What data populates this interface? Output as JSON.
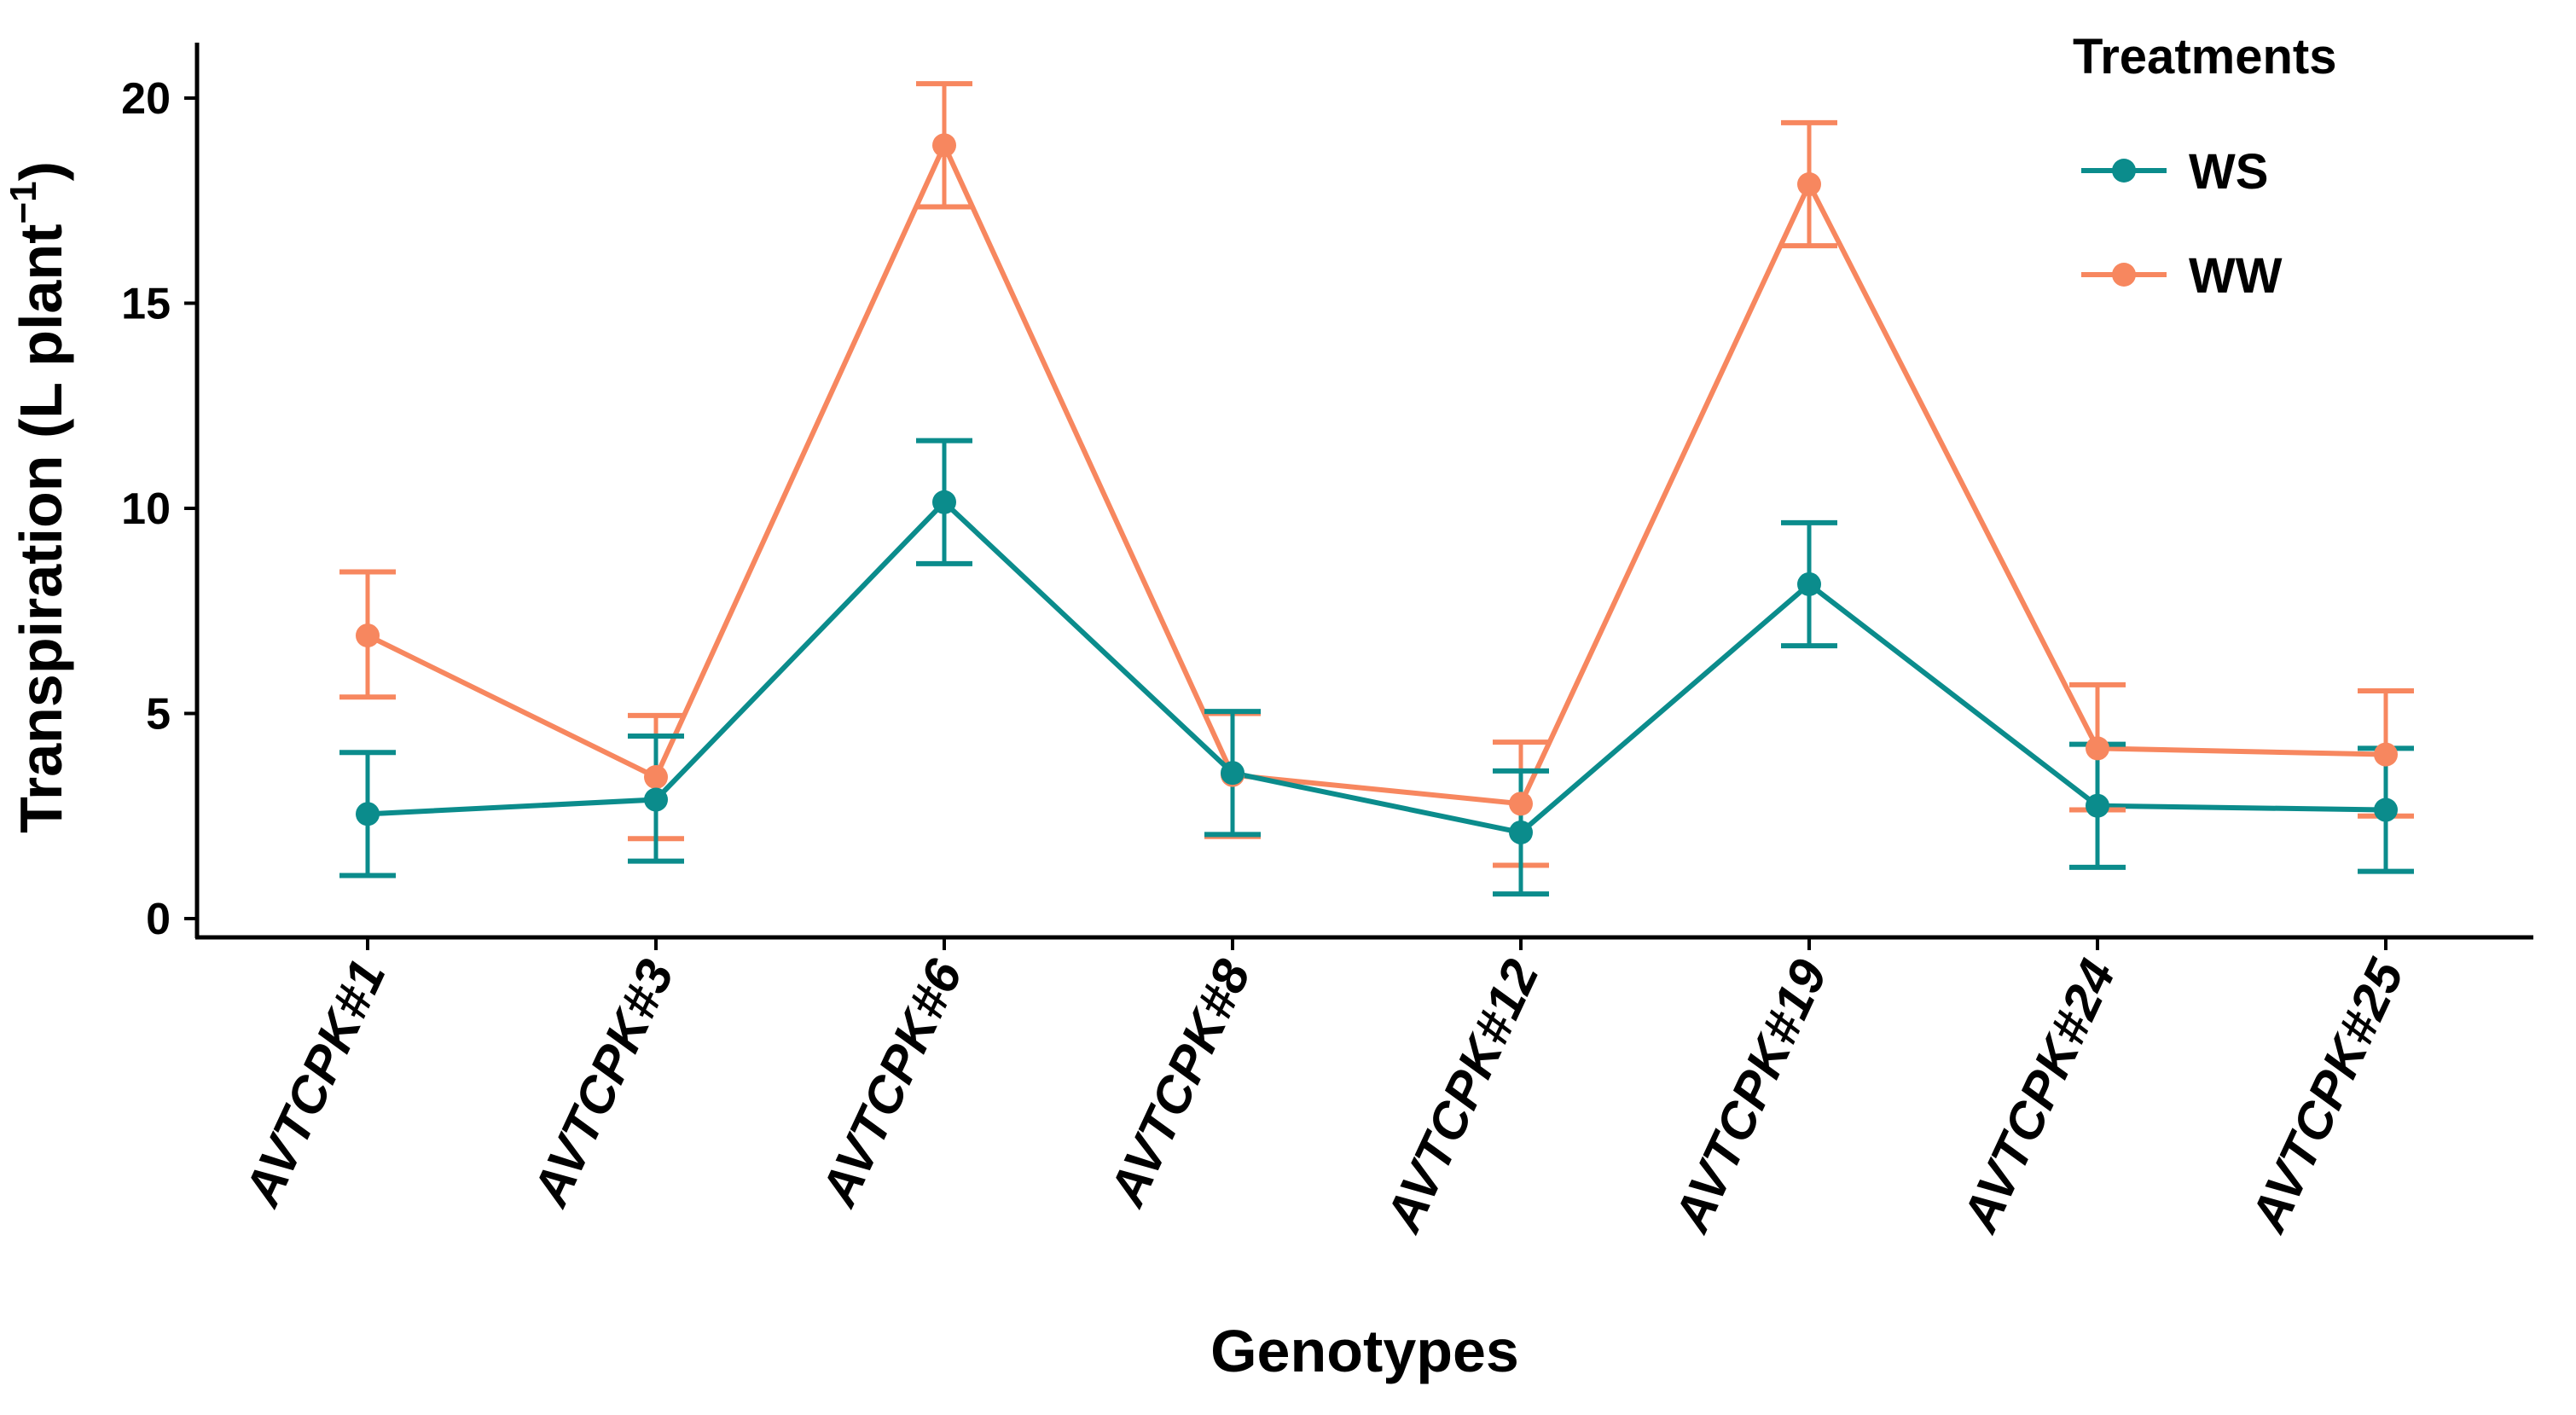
{
  "chart_data": {
    "type": "line",
    "xlabel": "Genotypes",
    "ylabel": "Transpiration (L plant",
    "ylabel_sup": "−1",
    "ylabel_close": ")",
    "ylim": [
      0,
      20
    ],
    "yticks": [
      0,
      5,
      10,
      15,
      20
    ],
    "grid": false,
    "legend": {
      "title": "Treatments",
      "placement": "top-right"
    },
    "categories": [
      "AVTCPK#1",
      "AVTCPK#3",
      "AVTCPK#6",
      "AVTCPK#8",
      "AVTCPK#12",
      "AVTCPK#19",
      "AVTCPK#24",
      "AVTCPK#25"
    ],
    "series": [
      {
        "name": "WS",
        "color": "#0b8c8c",
        "values": [
          2.55,
          2.9,
          10.15,
          3.55,
          2.1,
          8.15,
          2.75,
          2.65
        ],
        "err_low": [
          1.05,
          1.4,
          8.65,
          2.05,
          0.6,
          6.65,
          1.25,
          1.15
        ],
        "err_high": [
          4.05,
          4.45,
          11.65,
          5.05,
          3.6,
          9.65,
          4.25,
          4.15
        ]
      },
      {
        "name": "WW",
        "color": "#f7875f",
        "values": [
          6.9,
          3.45,
          18.85,
          3.5,
          2.8,
          17.9,
          4.15,
          4.0
        ],
        "err_low": [
          5.4,
          1.95,
          17.35,
          2.0,
          1.3,
          16.4,
          2.65,
          2.5
        ],
        "err_high": [
          8.45,
          4.95,
          20.35,
          5.0,
          4.3,
          19.4,
          5.7,
          5.55
        ]
      }
    ]
  }
}
